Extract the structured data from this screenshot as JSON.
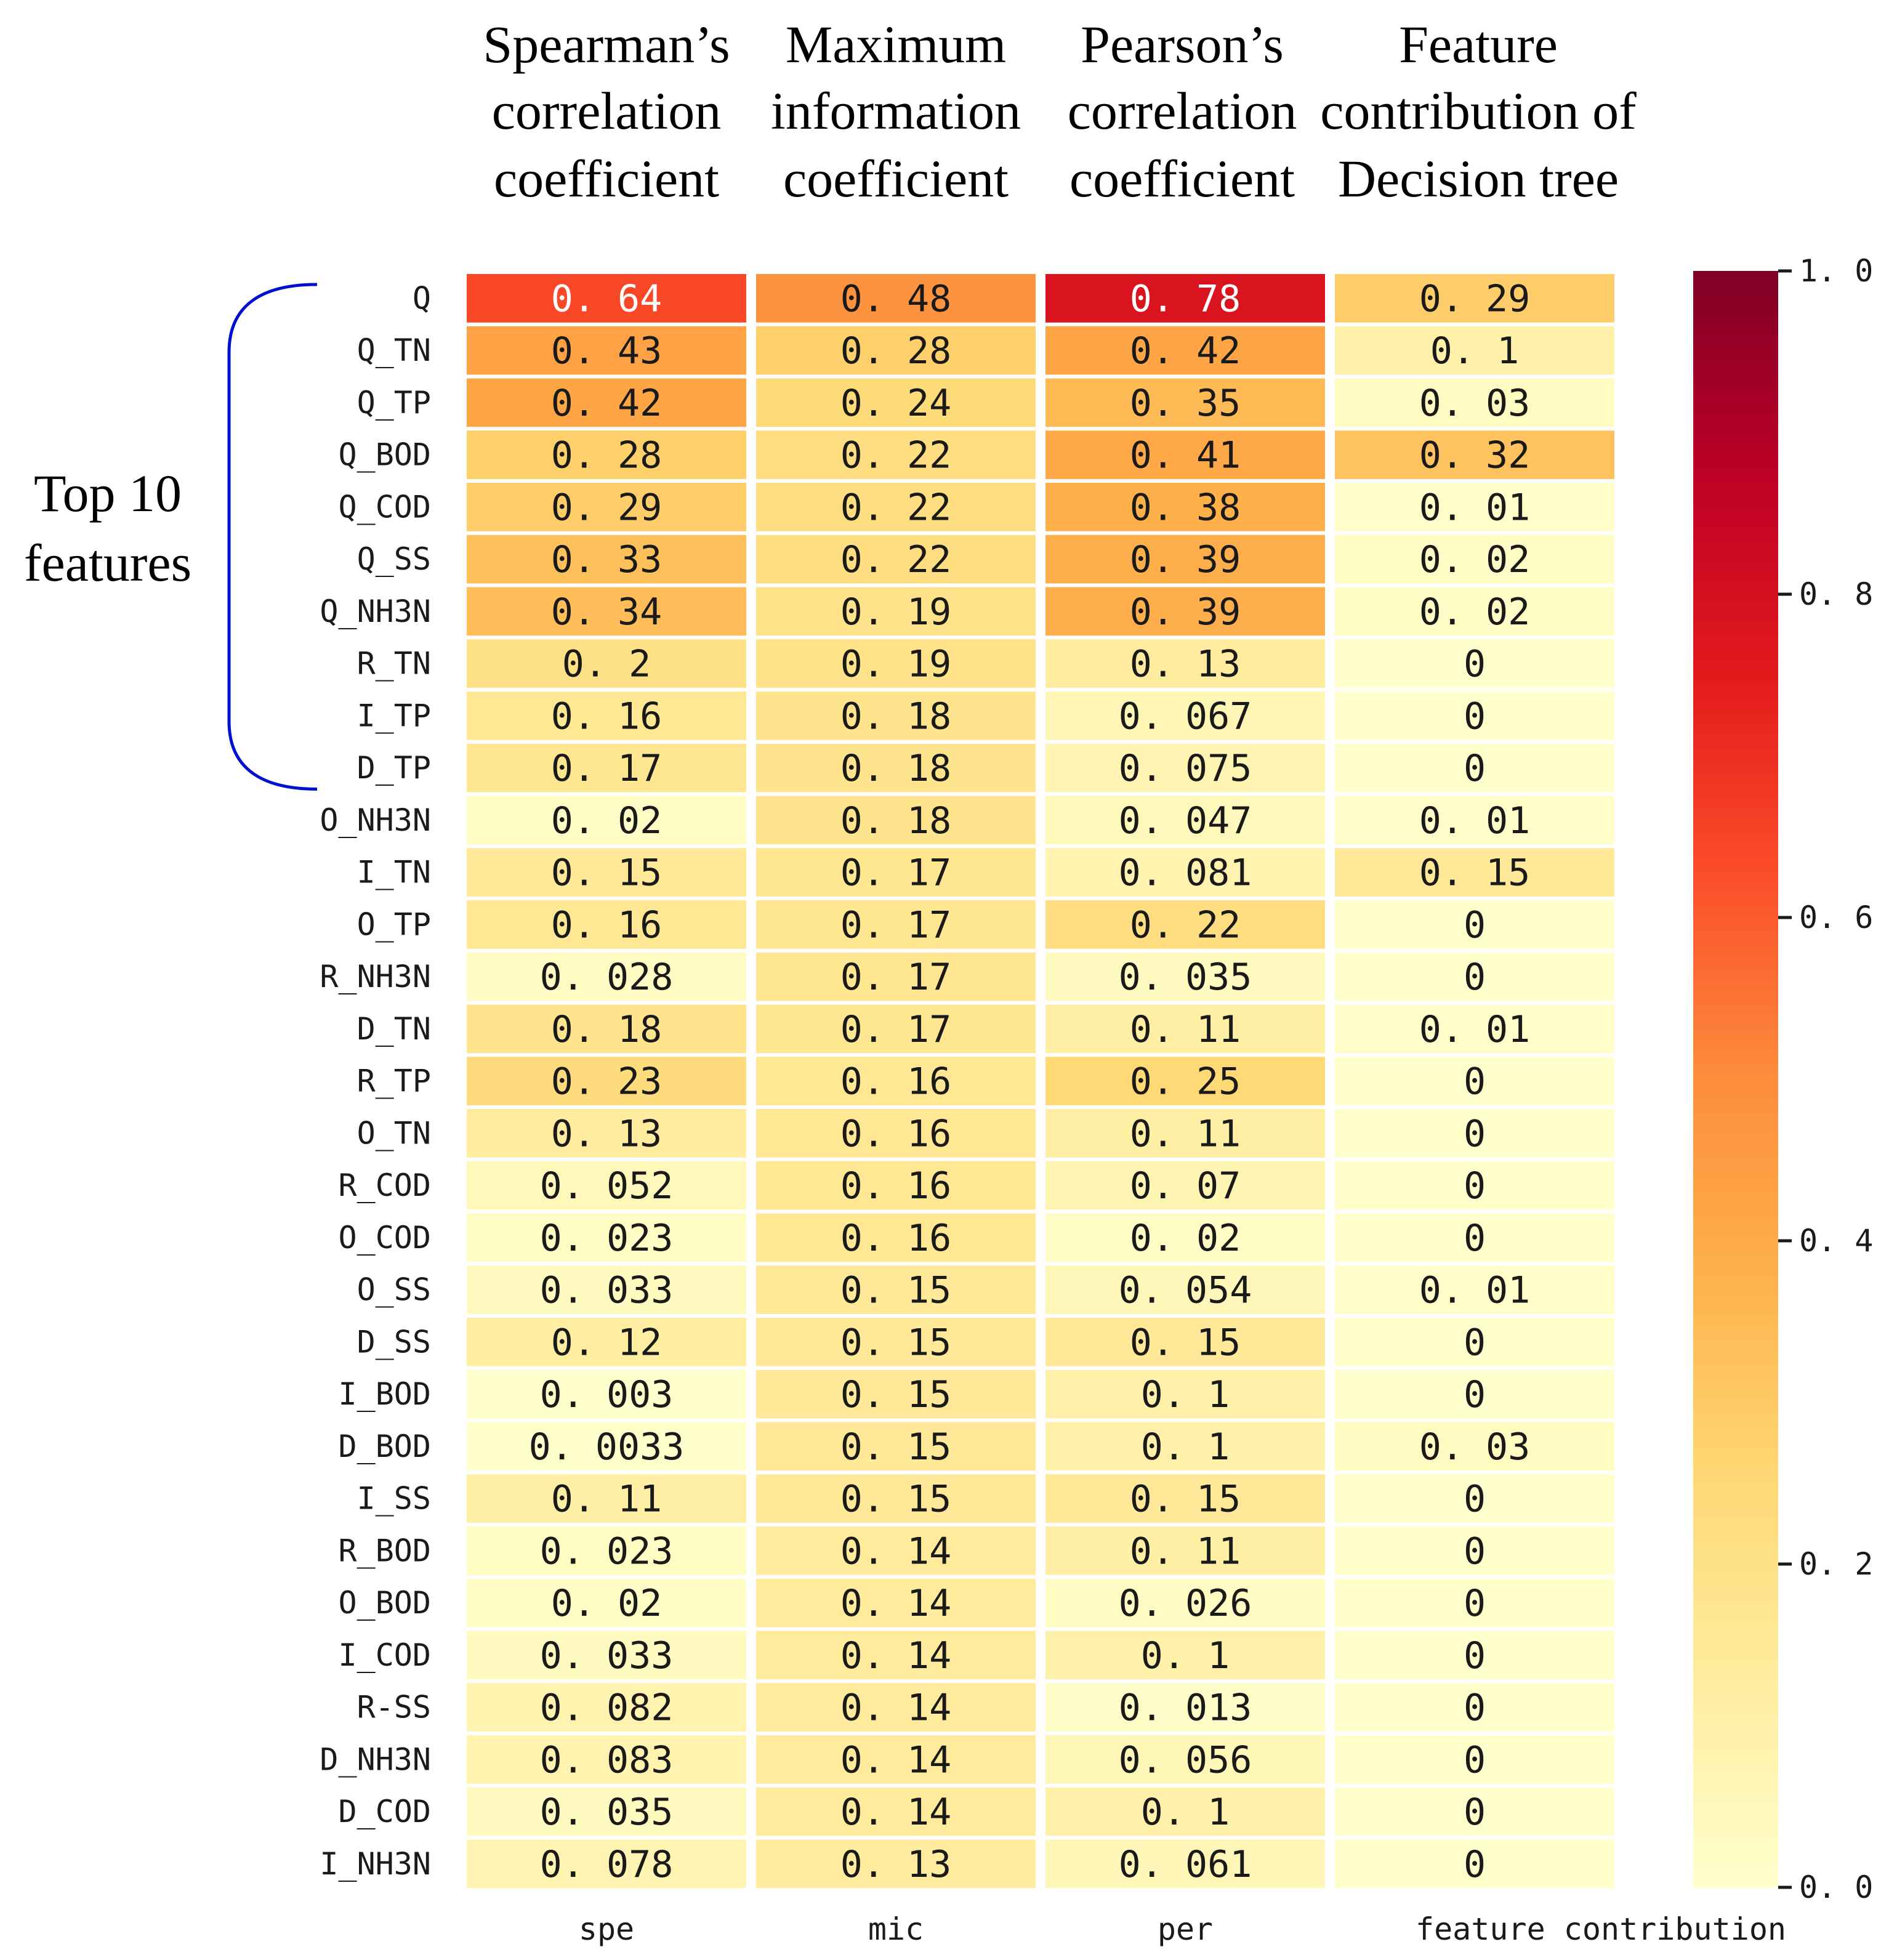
{
  "chart_data": {
    "type": "heatmap",
    "column_headers": [
      [
        "Spearman’s",
        "correlation",
        "coefficient"
      ],
      [
        "Maximum",
        "information",
        "coefficient"
      ],
      [
        "Pearson’s",
        "correlation",
        "coefficient"
      ],
      [
        "Feature",
        "contribution of",
        "Decision tree"
      ]
    ],
    "columns": [
      "spe",
      "mic",
      "per",
      "feature contribution"
    ],
    "rows": [
      "Q",
      "Q_TN",
      "Q_TP",
      "Q_BOD",
      "Q_COD",
      "Q_SS",
      "Q_NH3N",
      "R_TN",
      "I_TP",
      "D_TP",
      "O_NH3N",
      "I_TN",
      "O_TP",
      "R_NH3N",
      "D_TN",
      "R_TP",
      "O_TN",
      "R_COD",
      "O_COD",
      "O_SS",
      "D_SS",
      "I_BOD",
      "D_BOD",
      "I_SS",
      "R_BOD",
      "O_BOD",
      "I_COD",
      "R-SS",
      "D_NH3N",
      "D_COD",
      "I_NH3N"
    ],
    "values": [
      [
        0.64,
        0.48,
        0.78,
        0.29
      ],
      [
        0.43,
        0.28,
        0.42,
        0.1
      ],
      [
        0.42,
        0.24,
        0.35,
        0.03
      ],
      [
        0.28,
        0.22,
        0.41,
        0.32
      ],
      [
        0.29,
        0.22,
        0.38,
        0.01
      ],
      [
        0.33,
        0.22,
        0.39,
        0.02
      ],
      [
        0.34,
        0.19,
        0.39,
        0.02
      ],
      [
        0.2,
        0.19,
        0.13,
        0
      ],
      [
        0.16,
        0.18,
        0.067,
        0
      ],
      [
        0.17,
        0.18,
        0.075,
        0
      ],
      [
        0.02,
        0.18,
        0.047,
        0.01
      ],
      [
        0.15,
        0.17,
        0.081,
        0.15
      ],
      [
        0.16,
        0.17,
        0.22,
        0
      ],
      [
        0.028,
        0.17,
        0.035,
        0
      ],
      [
        0.18,
        0.17,
        0.11,
        0.01
      ],
      [
        0.23,
        0.16,
        0.25,
        0
      ],
      [
        0.13,
        0.16,
        0.11,
        0
      ],
      [
        0.052,
        0.16,
        0.07,
        0
      ],
      [
        0.023,
        0.16,
        0.02,
        0
      ],
      [
        0.033,
        0.15,
        0.054,
        0.01
      ],
      [
        0.12,
        0.15,
        0.15,
        0
      ],
      [
        0.003,
        0.15,
        0.1,
        0
      ],
      [
        0.0033,
        0.15,
        0.1,
        0.03
      ],
      [
        0.11,
        0.15,
        0.15,
        0
      ],
      [
        0.023,
        0.14,
        0.11,
        0
      ],
      [
        0.02,
        0.14,
        0.026,
        0
      ],
      [
        0.033,
        0.14,
        0.1,
        0
      ],
      [
        0.082,
        0.14,
        0.013,
        0
      ],
      [
        0.083,
        0.14,
        0.056,
        0
      ],
      [
        0.035,
        0.14,
        0.1,
        0
      ],
      [
        0.078,
        0.13,
        0.061,
        0
      ]
    ],
    "value_labels": [
      [
        "0. 64",
        "0. 48",
        "0. 78",
        "0. 29"
      ],
      [
        "0. 43",
        "0. 28",
        "0. 42",
        "0. 1"
      ],
      [
        "0. 42",
        "0. 24",
        "0. 35",
        "0. 03"
      ],
      [
        "0. 28",
        "0. 22",
        "0. 41",
        "0. 32"
      ],
      [
        "0. 29",
        "0. 22",
        "0. 38",
        "0. 01"
      ],
      [
        "0. 33",
        "0. 22",
        "0. 39",
        "0. 02"
      ],
      [
        "0. 34",
        "0. 19",
        "0. 39",
        "0. 02"
      ],
      [
        "0. 2",
        "0. 19",
        "0. 13",
        "0"
      ],
      [
        "0. 16",
        "0. 18",
        "0. 067",
        "0"
      ],
      [
        "0. 17",
        "0. 18",
        "0. 075",
        "0"
      ],
      [
        "0. 02",
        "0. 18",
        "0. 047",
        "0. 01"
      ],
      [
        "0. 15",
        "0. 17",
        "0. 081",
        "0. 15"
      ],
      [
        "0. 16",
        "0. 17",
        "0. 22",
        "0"
      ],
      [
        "0. 028",
        "0. 17",
        "0. 035",
        "0"
      ],
      [
        "0. 18",
        "0. 17",
        "0. 11",
        "0. 01"
      ],
      [
        "0. 23",
        "0. 16",
        "0. 25",
        "0"
      ],
      [
        "0. 13",
        "0. 16",
        "0. 11",
        "0"
      ],
      [
        "0. 052",
        "0. 16",
        "0. 07",
        "0"
      ],
      [
        "0. 023",
        "0. 16",
        "0. 02",
        "0"
      ],
      [
        "0. 033",
        "0. 15",
        "0. 054",
        "0. 01"
      ],
      [
        "0. 12",
        "0. 15",
        "0. 15",
        "0"
      ],
      [
        "0. 003",
        "0. 15",
        "0. 1",
        "0"
      ],
      [
        "0. 0033",
        "0. 15",
        "0. 1",
        "0. 03"
      ],
      [
        "0. 11",
        "0. 15",
        "0. 15",
        "0"
      ],
      [
        "0. 023",
        "0. 14",
        "0. 11",
        "0"
      ],
      [
        "0. 02",
        "0. 14",
        "0. 026",
        "0"
      ],
      [
        "0. 033",
        "0. 14",
        "0. 1",
        "0"
      ],
      [
        "0. 082",
        "0. 14",
        "0. 013",
        "0"
      ],
      [
        "0. 083",
        "0. 14",
        "0. 056",
        "0"
      ],
      [
        "0. 035",
        "0. 14",
        "0. 1",
        "0"
      ],
      [
        "0. 078",
        "0. 13",
        "0. 061",
        "0"
      ]
    ],
    "colorbar": {
      "range": [
        0,
        1.0
      ],
      "ticks": [
        0.0,
        0.2,
        0.4,
        0.6,
        0.8,
        1.0
      ],
      "tick_labels": [
        "0. 0",
        "0. 2",
        "0. 4",
        "0. 6",
        "0. 8",
        "1. 0"
      ],
      "colormap": "YlOrRd"
    },
    "annotation": {
      "label": [
        "Top 10",
        "features"
      ],
      "color": "#0010d0",
      "rows_covered": 10
    },
    "colors": {
      "text_dark": "#1a1a1a",
      "text_light": "#ffffff",
      "cell_gap": "#ffffff"
    }
  }
}
